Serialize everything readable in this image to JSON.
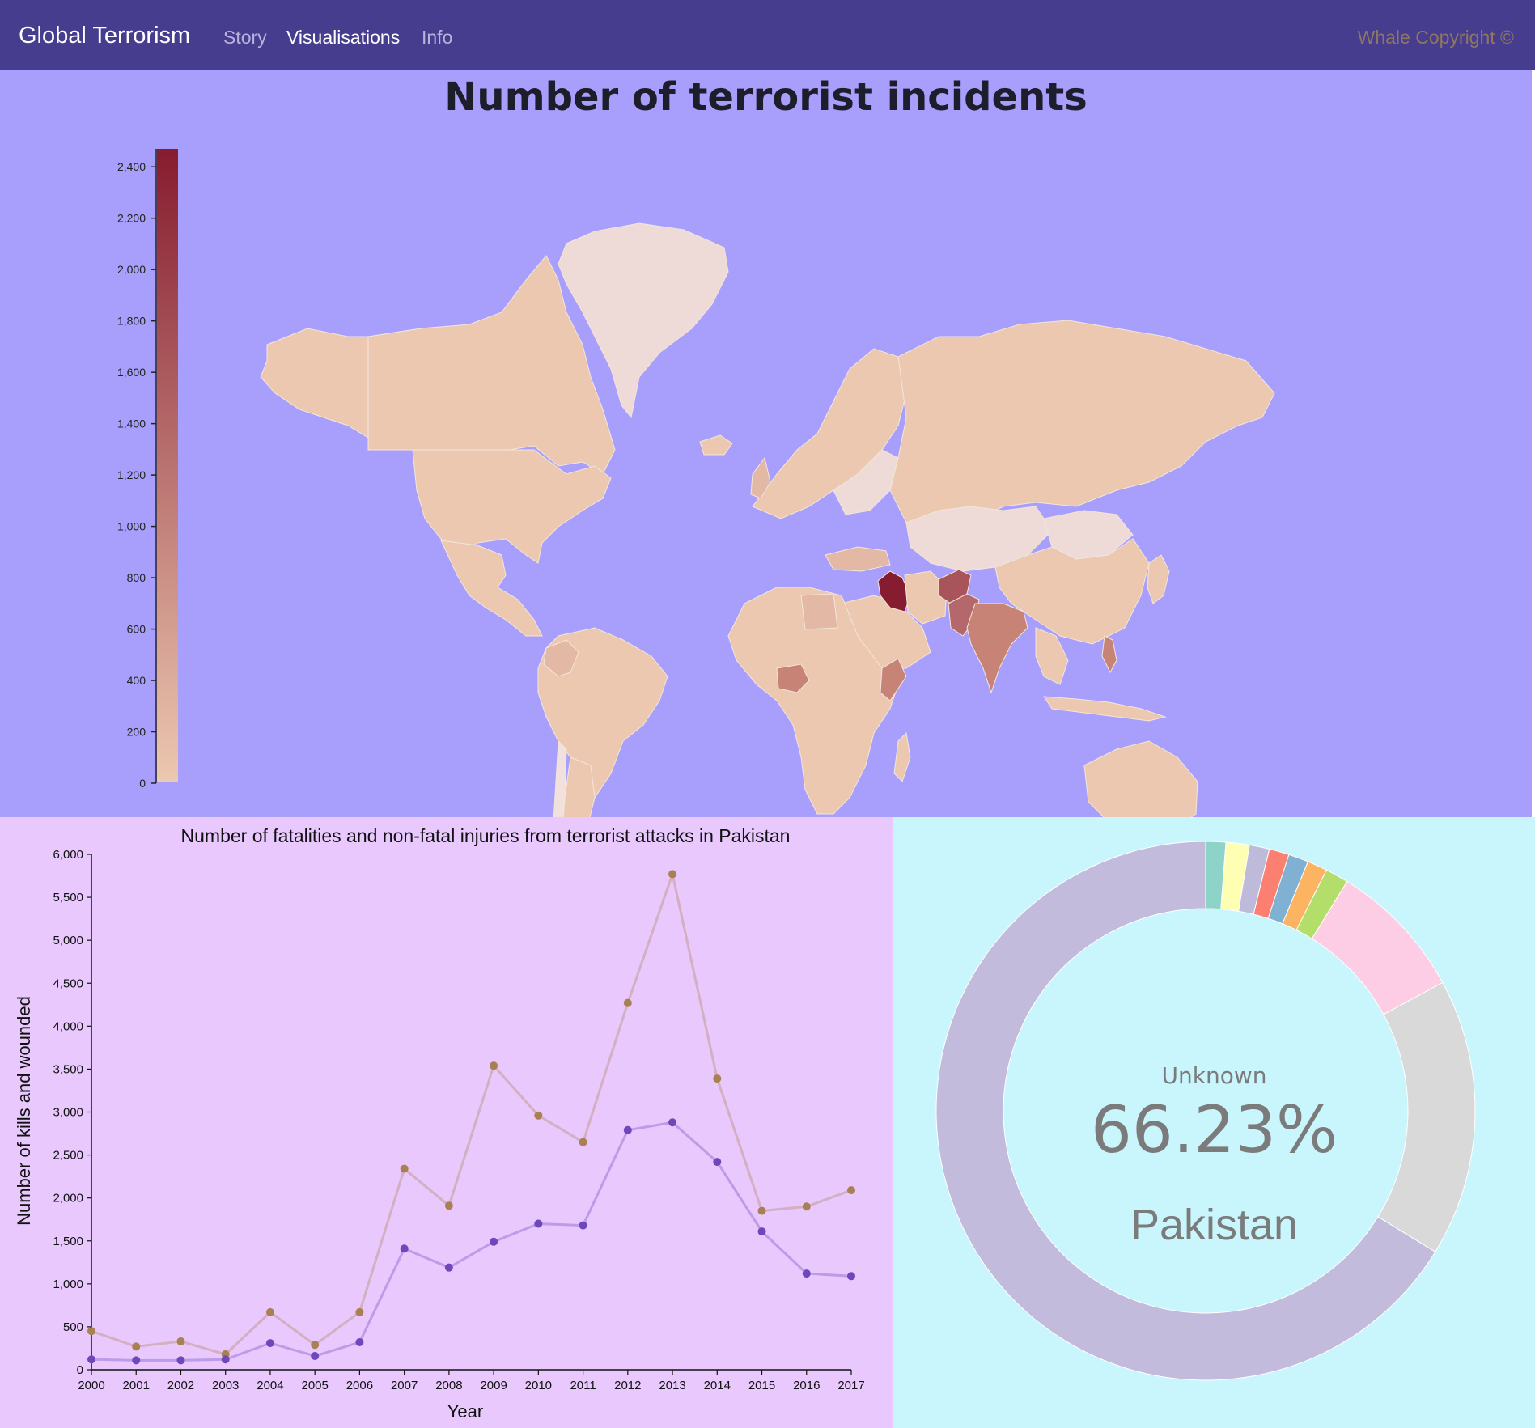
{
  "nav": {
    "brand": "Global Terrorism",
    "links": [
      {
        "label": "Story",
        "active": false
      },
      {
        "label": "Visualisations",
        "active": true
      },
      {
        "label": "Info",
        "active": false
      }
    ],
    "copyright": "Whale Copyright ©"
  },
  "map": {
    "title": "Number of terrorist incidents",
    "legend_ticks": [
      "0",
      "200",
      "400",
      "600",
      "800",
      "1,000",
      "1,200",
      "1,400",
      "1,600",
      "1,800",
      "2,000",
      "2,200",
      "2,400"
    ],
    "legend_max": 2470,
    "colors": {
      "low": "#ecc8b0",
      "high": "#861c2f",
      "background": "#a89ffc"
    }
  },
  "chart_data": [
    {
      "type": "line",
      "title": "Number of fatalities and non-fatal injuries from terrorist attacks in Pakistan",
      "xlabel": "Year",
      "ylabel": "Number of kills and wounded",
      "x": [
        "2000",
        "2001",
        "2002",
        "2003",
        "2004",
        "2005",
        "2006",
        "2007",
        "2008",
        "2009",
        "2010",
        "2011",
        "2012",
        "2013",
        "2014",
        "2015",
        "2016",
        "2017"
      ],
      "ylim": [
        0,
        6000
      ],
      "yticks": [
        "0",
        "500",
        "1,000",
        "1,500",
        "2,000",
        "2,500",
        "3,000",
        "3,500",
        "4,000",
        "4,500",
        "5,000",
        "5,500",
        "6,000"
      ],
      "series": [
        {
          "color": "#a88051",
          "values": [
            450,
            270,
            330,
            180,
            670,
            290,
            670,
            2340,
            1910,
            3540,
            2960,
            2650,
            4270,
            5770,
            3390,
            1850,
            1900,
            2090
          ]
        },
        {
          "color": "#6e47bb",
          "values": [
            120,
            110,
            110,
            120,
            310,
            160,
            320,
            1410,
            1190,
            1490,
            1700,
            1680,
            2790,
            2880,
            2420,
            1610,
            1120,
            1090
          ]
        }
      ],
      "grid": false
    },
    {
      "type": "pie",
      "center_label": "Unknown",
      "center_value": "66.23%",
      "center_country": "Pakistan",
      "slices": [
        {
          "color": "#8dd3c7",
          "value": 1.2
        },
        {
          "color": "#ffffb3",
          "value": 1.4
        },
        {
          "color": "#bebada",
          "value": 1.2
        },
        {
          "color": "#fb8072",
          "value": 1.2
        },
        {
          "color": "#80b1d3",
          "value": 1.2
        },
        {
          "color": "#fdb462",
          "value": 1.2
        },
        {
          "color": "#b3de69",
          "value": 1.4
        },
        {
          "color": "#fccde5",
          "value": 8.3
        },
        {
          "color": "#d9d9d9",
          "value": 16.67
        },
        {
          "color": "#c3bbdc",
          "value": 66.23
        }
      ]
    }
  ]
}
